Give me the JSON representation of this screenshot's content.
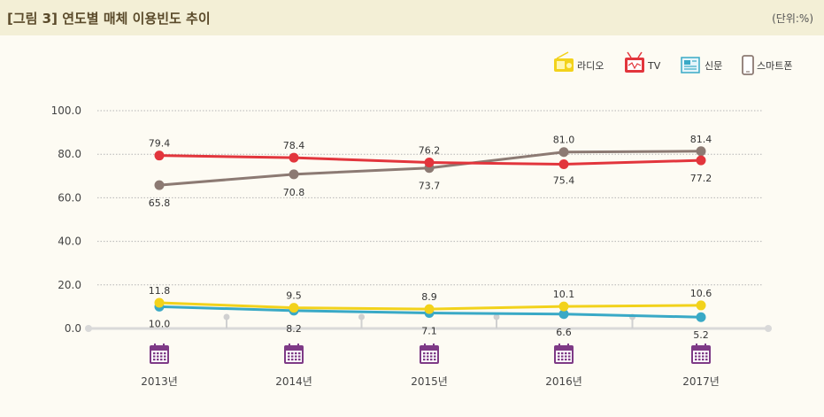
{
  "header": {
    "title": "[그림 3]  연도별 매체 이용빈도 추이",
    "unit": "(단위:%)"
  },
  "chart_data": {
    "type": "line",
    "title": "연도별 매체 이용빈도 추이",
    "categories": [
      "2013년",
      "2014년",
      "2015년",
      "2016년",
      "2017년"
    ],
    "ylim": [
      0,
      100
    ],
    "yticks": [
      "0.0",
      "20.0",
      "40.0",
      "60.0",
      "80.0",
      "100.0"
    ],
    "grid": true,
    "legend_position": "top-right",
    "series": [
      {
        "name": "라디오",
        "color": "#f2d21b",
        "icon": "radio-icon",
        "values": [
          11.8,
          9.5,
          8.9,
          10.1,
          10.6
        ]
      },
      {
        "name": "TV",
        "color": "#e2353c",
        "icon": "tv-icon",
        "values": [
          79.4,
          78.4,
          76.2,
          75.4,
          77.2
        ]
      },
      {
        "name": "신문",
        "color": "#39a9c6",
        "icon": "newspaper-icon",
        "values": [
          10.0,
          8.2,
          7.1,
          6.6,
          5.2
        ]
      },
      {
        "name": "스마트폰",
        "color": "#8c7a73",
        "icon": "smartphone-icon",
        "values": [
          65.8,
          70.8,
          73.7,
          81.0,
          81.4
        ]
      }
    ],
    "data_labels": {
      "라디오": [
        "11.8",
        "9.5",
        "8.9",
        "10.1",
        "10.6"
      ],
      "TV": [
        "79.4",
        "78.4",
        "76.2",
        "75.4",
        "77.2"
      ],
      "신문": [
        "10.0",
        "8.2",
        "7.1",
        "6.6",
        "5.2"
      ],
      "스마트폰": [
        "65.8",
        "70.8",
        "73.7",
        "81.0",
        "81.4"
      ]
    },
    "category_icon": "calendar-icon"
  }
}
